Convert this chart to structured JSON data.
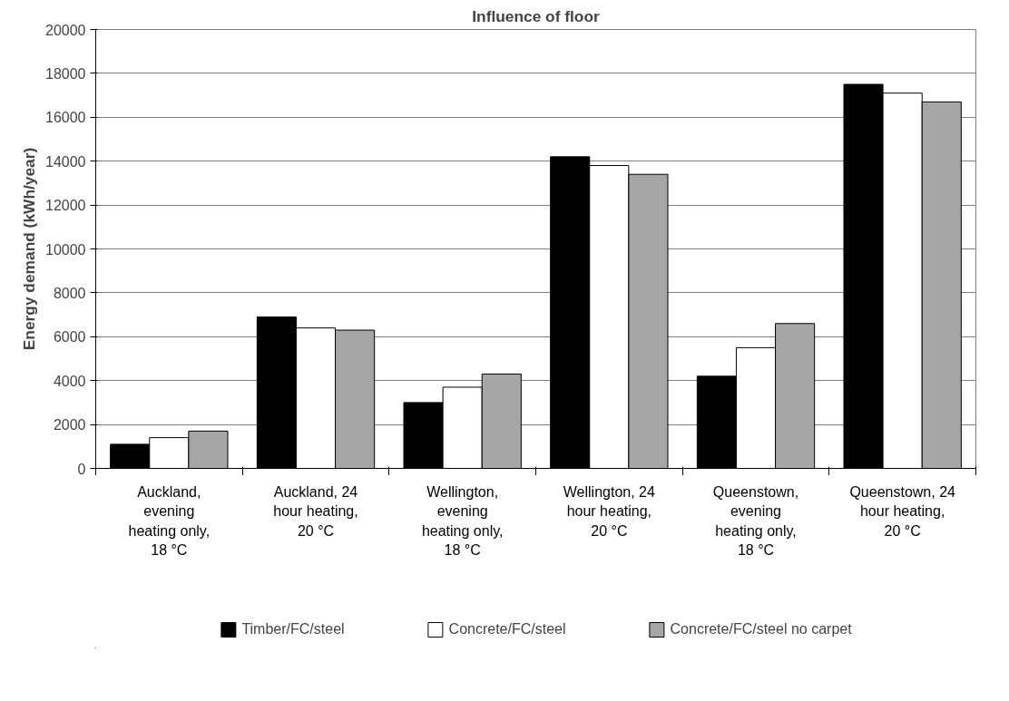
{
  "chart_data": {
    "type": "bar",
    "title": "Influence of floor",
    "ylabel": "Energy demand (kWh/year)",
    "categories": [
      "Auckland, evening heating only, 18 °C",
      "Auckland, 24 hour heating, 20 °C",
      "Wellington, evening heating only, 18 °C",
      "Wellington, 24 hour heating, 20 °C",
      "Queenstown, evening heating only, 18 °C",
      "Queenstown, 24 hour heating, 20 °C"
    ],
    "series": [
      {
        "name": "Timber/FC/steel",
        "color": "#000000",
        "values": [
          1100,
          6900,
          3000,
          14200,
          4200,
          17500
        ]
      },
      {
        "name": "Concrete/FC/steel",
        "color": "#ffffff",
        "values": [
          1400,
          6400,
          3700,
          13800,
          5500,
          17100
        ]
      },
      {
        "name": "Concrete/FC/steel no carpet",
        "color": "#a6a6a6",
        "values": [
          1700,
          6300,
          4300,
          13400,
          6600,
          16700
        ]
      }
    ],
    "ylim": [
      0,
      20000
    ],
    "yticks": [
      0,
      2000,
      4000,
      6000,
      8000,
      10000,
      12000,
      14000,
      16000,
      18000,
      20000
    ],
    "grid": "y",
    "legend": "bottom"
  }
}
